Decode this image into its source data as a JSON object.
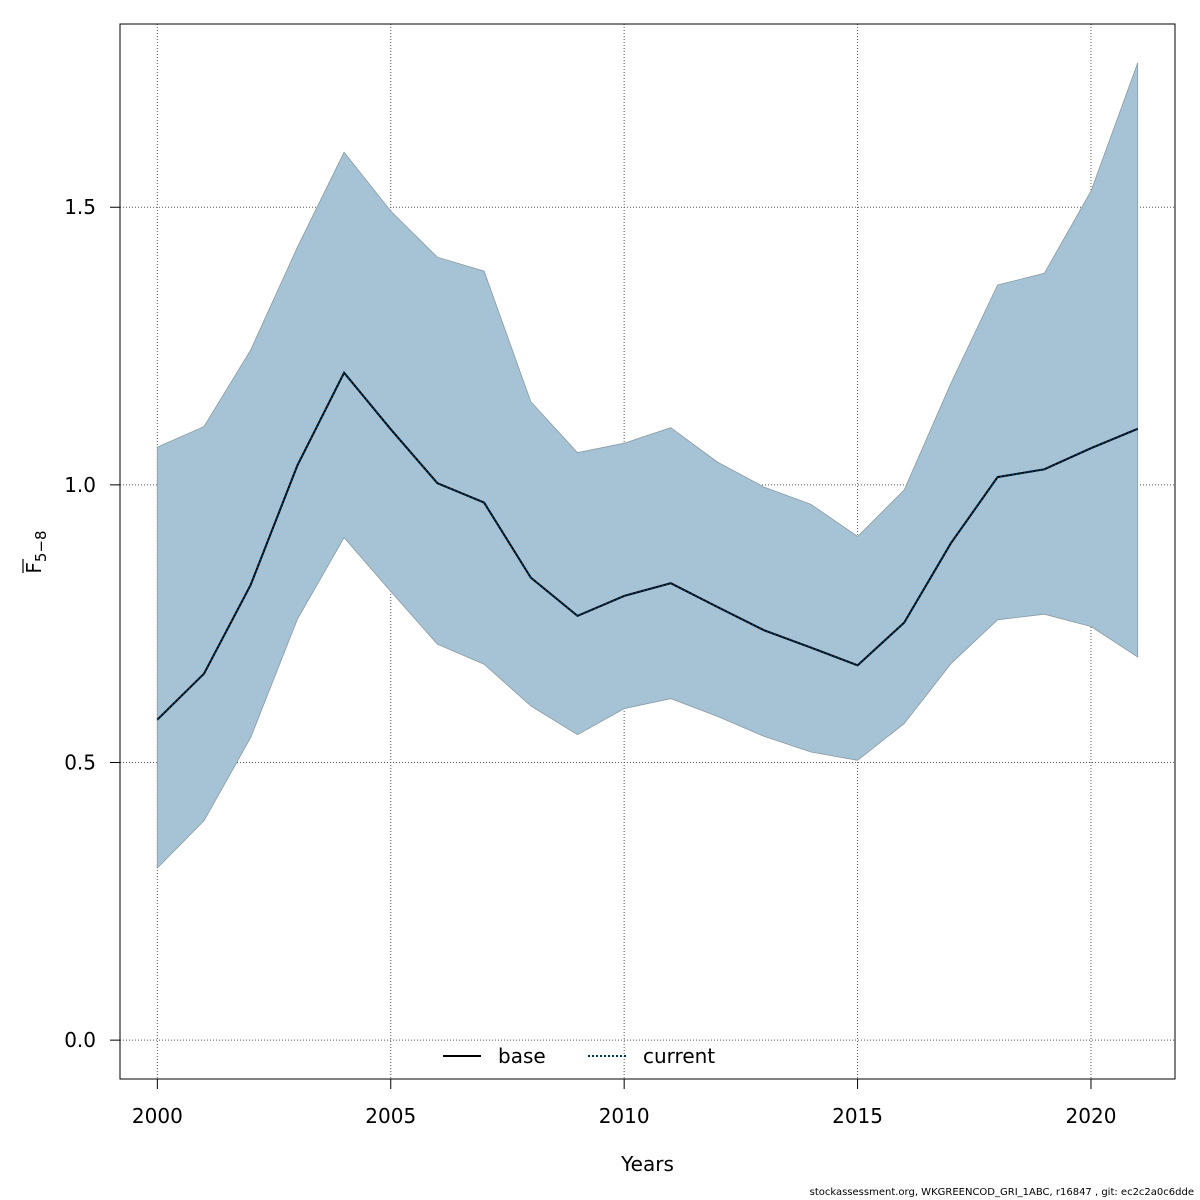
{
  "chart_data": {
    "type": "line",
    "title": "",
    "xlabel": "Years",
    "ylabel_main": "F",
    "ylabel_sub": "5−8",
    "xlim": [
      1999.2,
      2021.8
    ],
    "ylim": [
      -0.07,
      1.83
    ],
    "x_ticks": [
      2000,
      2005,
      2010,
      2015,
      2020
    ],
    "x_tick_labels": [
      "2000",
      "2005",
      "2010",
      "2015",
      "2020"
    ],
    "y_ticks": [
      0.0,
      0.5,
      1.0,
      1.5
    ],
    "y_tick_labels": [
      "0.0",
      "0.5",
      "1.0",
      "1.5"
    ],
    "grid": true,
    "legend_position": "bottom-center",
    "colors": {
      "band": "#a5c3d4",
      "band_edge": "#8a9aa6",
      "base": "#000000",
      "current": "#00355a"
    },
    "x": [
      2000,
      2001,
      2002,
      2003,
      2004,
      2005,
      2006,
      2007,
      2008,
      2009,
      2010,
      2011,
      2012,
      2013,
      2014,
      2015,
      2016,
      2017,
      2018,
      2019,
      2020,
      2021
    ],
    "series": [
      {
        "name": "base",
        "style": "solid",
        "values": [
          0.577,
          0.66,
          0.82,
          1.035,
          1.202,
          1.1,
          1.003,
          0.968,
          0.833,
          0.764,
          0.8,
          0.823,
          0.78,
          0.738,
          0.707,
          0.675,
          0.752,
          0.895,
          1.014,
          1.028,
          1.066,
          1.101
        ]
      },
      {
        "name": "current",
        "style": "dotted",
        "values": [
          0.577,
          0.66,
          0.82,
          1.035,
          1.202,
          1.1,
          1.003,
          0.968,
          0.833,
          0.764,
          0.8,
          0.823,
          0.78,
          0.738,
          0.707,
          0.675,
          0.752,
          0.895,
          1.014,
          1.028,
          1.066,
          1.101
        ]
      }
    ],
    "band": {
      "lower": [
        0.31,
        0.395,
        0.545,
        0.758,
        0.905,
        0.808,
        0.713,
        0.677,
        0.602,
        0.55,
        0.597,
        0.615,
        0.583,
        0.547,
        0.519,
        0.504,
        0.57,
        0.678,
        0.757,
        0.767,
        0.745,
        0.69
      ],
      "upper": [
        1.068,
        1.105,
        1.243,
        1.428,
        1.599,
        1.493,
        1.41,
        1.385,
        1.15,
        1.058,
        1.075,
        1.103,
        1.041,
        0.996,
        0.965,
        0.907,
        0.991,
        1.183,
        1.36,
        1.381,
        1.529,
        1.76
      ]
    }
  },
  "footer": "stockassessment.org, WKGREENCOD_GRI_1ABC, r16847 , git: ec2c2a0c6dde"
}
